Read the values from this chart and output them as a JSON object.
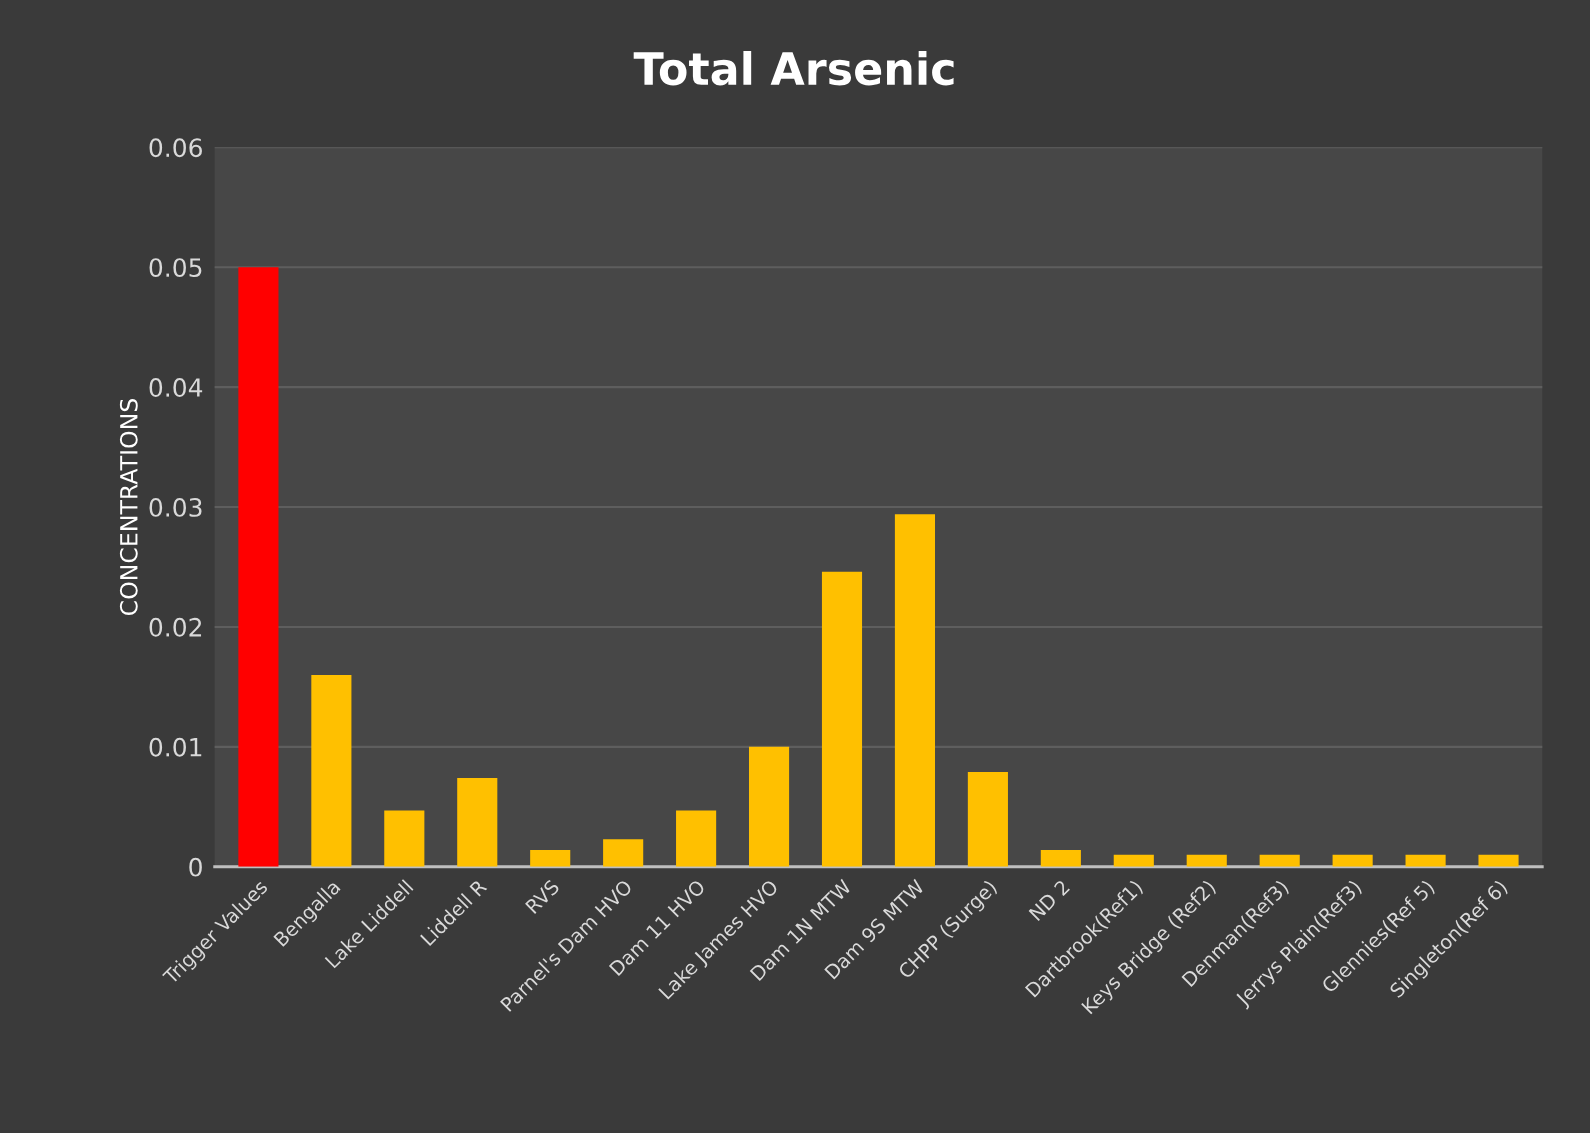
{
  "chart_data": {
    "type": "bar",
    "title": "Total Arsenic",
    "ylabel": "CONCENTRATIONS",
    "categories": [
      "Trigger Values",
      "Bengalla",
      "Lake Liddell",
      "Liddell R",
      "RVS",
      "Parnel's Dam HVO",
      "Dam 11 HVO",
      "Lake James HVO",
      "Dam 1N MTW",
      "Dam 9S MTW",
      "CHPP (Surge)",
      "ND 2",
      "Dartbrook(Ref1)",
      "Keys Bridge (Ref2)",
      "Denman(Ref3)",
      "Jerrys Plain(Ref3)",
      "Glennies(Ref 5)",
      "Singleton(Ref 6)"
    ],
    "values": [
      0.05,
      0.016,
      0.0047,
      0.0074,
      0.0014,
      0.0023,
      0.0047,
      0.01,
      0.0246,
      0.0294,
      0.0079,
      0.0014,
      0.001,
      0.001,
      0.001,
      0.001,
      0.001,
      0.001
    ],
    "colors": [
      "#ff0000",
      "#ffc000",
      "#ffc000",
      "#ffc000",
      "#ffc000",
      "#ffc000",
      "#ffc000",
      "#ffc000",
      "#ffc000",
      "#ffc000",
      "#ffc000",
      "#ffc000",
      "#ffc000",
      "#ffc000",
      "#ffc000",
      "#ffc000",
      "#ffc000",
      "#ffc000"
    ],
    "ylim": [
      0,
      0.06
    ],
    "yticks": [
      0,
      0.01,
      0.02,
      0.03,
      0.04,
      0.05,
      0.06
    ],
    "grid": "y",
    "legend": false
  }
}
